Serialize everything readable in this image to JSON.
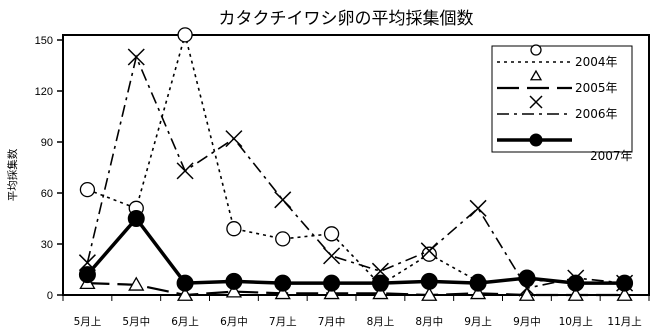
{
  "chart_data": {
    "type": "line",
    "title": "カタクチイワシ卵の平均採集個数",
    "xlabel": "",
    "ylabel": "平均採集数",
    "categories": [
      "5月上",
      "5月中",
      "6月上",
      "6月中",
      "7月上",
      "7月中",
      "8月上",
      "8月中",
      "9月上",
      "9月中",
      "10月上",
      "11月上"
    ],
    "ylim": [
      0,
      150
    ],
    "yticks": [
      0,
      30,
      60,
      90,
      120,
      150
    ],
    "grid": false,
    "legend_position": "top-right",
    "series": [
      {
        "name": "2004年",
        "marker": "circle-open",
        "line": "dotted",
        "color": "#000000",
        "values": [
          62,
          51,
          153,
          39,
          33,
          36,
          6,
          24,
          8,
          9,
          7,
          7
        ]
      },
      {
        "name": "2005年",
        "marker": "triangle-open",
        "line": "long-dash",
        "color": "#000000",
        "values": [
          7,
          6,
          0,
          2,
          1,
          1,
          1,
          0,
          1,
          0,
          0,
          0
        ]
      },
      {
        "name": "2006年",
        "marker": "x",
        "line": "dash-dot",
        "color": "#000000",
        "values": [
          19,
          140,
          73,
          92,
          56,
          23,
          14,
          26,
          51,
          4,
          10,
          7
        ]
      },
      {
        "name": "2007年",
        "marker": "circle-filled",
        "line": "solid-thick",
        "color": "#000000",
        "values": [
          12,
          45,
          7,
          8,
          7,
          7,
          7,
          8,
          7,
          10,
          7,
          7
        ]
      }
    ]
  }
}
